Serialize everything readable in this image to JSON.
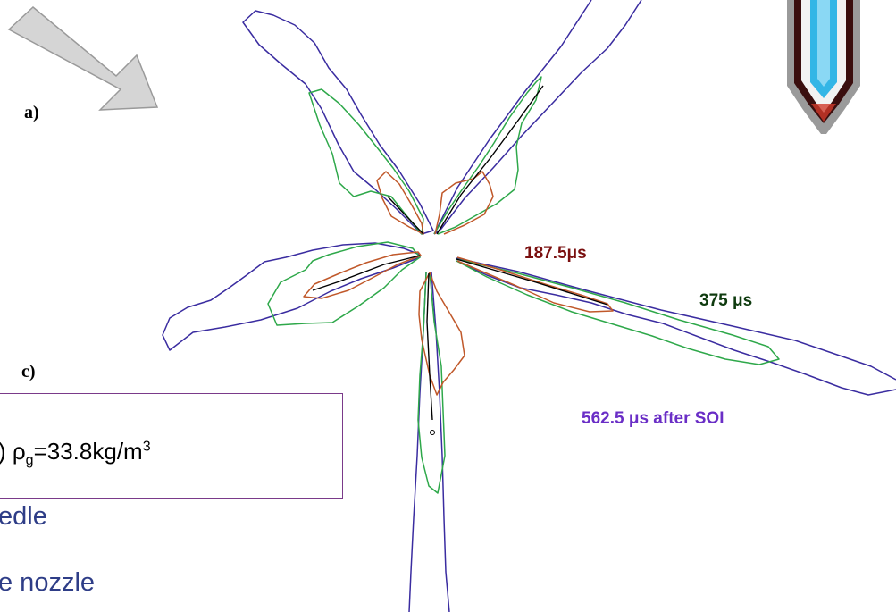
{
  "labels": {
    "a": "a)",
    "c": "c)"
  },
  "conditions": {
    "prefix": ") ρ",
    "sub": "g",
    "mid": "=33.8kg/m",
    "sup": "3"
  },
  "bullets": [
    "edle",
    "e nozzle"
  ],
  "timestamps": [
    {
      "text": "187.5μs",
      "color": "#7a0f0f"
    },
    {
      "text": "375 μs",
      "color": "#0f3b0f"
    },
    {
      "text": "562.5 μs after SOI",
      "color": "#6a2ec6"
    }
  ],
  "series_colors": {
    "t187": "#c0582a",
    "t375": "#2ea84a",
    "t562": "#3a2ca0",
    "black": "#000000"
  },
  "icons": {
    "arrow": "view-direction-arrow-icon",
    "injector": "injector-nozzle-icon"
  }
}
